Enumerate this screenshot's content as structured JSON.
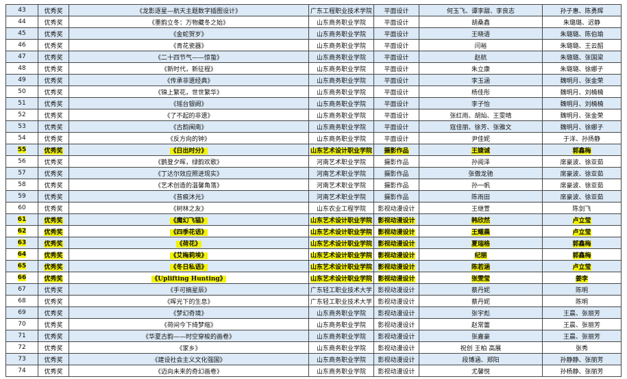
{
  "table": {
    "rows": [
      {
        "cells": [
          "43",
          "优秀奖",
          "《龙影逐星—航天主题数字插图设计》",
          "广东工程职业技术学院",
          "平面设计",
          "何玉飞、谭李甜、李良志",
          "孙子惠、陈勇辉"
        ]
      },
      {
        "cells": [
          "44",
          "优秀奖",
          "《墨韵立冬：万物藏冬之始》",
          "山东商务职业学院",
          "平面设计",
          "胡桑鑫",
          "朱璐璐、迟静"
        ]
      },
      {
        "cells": [
          "45",
          "优秀奖",
          "《金蛇贺岁》",
          "山东商务职业学院",
          "平面设计",
          "王晓语",
          "朱璐璐、陈伯瑜"
        ]
      },
      {
        "cells": [
          "46",
          "优秀奖",
          "《青花瓷器》",
          "山东商务职业学院",
          "平面设计",
          "闫裕",
          "朱璐璐、王云韶"
        ]
      },
      {
        "cells": [
          "47",
          "优秀奖",
          "《二十四节气——惊蛰》",
          "山东商务职业学院",
          "平面设计",
          "赵航",
          "朱璐璐、张国梁"
        ]
      },
      {
        "cells": [
          "48",
          "优秀奖",
          "《新时代，新征程》",
          "山东商务职业学院",
          "平面设计",
          "朱立康",
          "朱璐璐、徐娜子"
        ]
      },
      {
        "cells": [
          "49",
          "优秀奖",
          "《传承非遗经典》",
          "山东商务职业学院",
          "平面设计",
          "李玉涵",
          "魏明月、张金荣"
        ]
      },
      {
        "cells": [
          "50",
          "优秀奖",
          "《锦上繁花，世世繁华》",
          "山东商务职业学院",
          "平面设计",
          "杨佳彤",
          "魏明月、刘楠楠"
        ]
      },
      {
        "cells": [
          "51",
          "优秀奖",
          "《瑶台银阙》",
          "山东商务职业学院",
          "平面设计",
          "李子怡",
          "魏明月、刘楠楠"
        ]
      },
      {
        "cells": [
          "52",
          "优秀奖",
          "《了不起的非遗》",
          "山东商务职业学院",
          "平面设计",
          "张红雨、胡灿、王雯晴",
          "魏明月、张金荣"
        ]
      },
      {
        "cells": [
          "53",
          "优秀奖",
          "《古韵闽南》",
          "山东商务职业学院",
          "平面设计",
          "寇佳丽、徐芳、张雅文",
          "魏明月、徐娜子"
        ]
      },
      {
        "cells": [
          "54",
          "优秀奖",
          "《反方向的钟》",
          "山东商务职业学院",
          "平面设计",
          "尹佳妮",
          "于洋、孙扬静"
        ]
      },
      {
        "cells": [
          "55",
          "优秀奖",
          "《日出时分》",
          "山东艺术设计职业学院",
          "摄影作品",
          "王婕诚",
          "郭鑫梅"
        ],
        "highlight": true
      },
      {
        "cells": [
          "56",
          "优秀奖",
          "《鹊登夕晖，绿韵欢歌》",
          "河南艺术职业学院",
          "摄影作品",
          "孙阅泽",
          "席豪波、徐亚茹"
        ]
      },
      {
        "cells": [
          "57",
          "优秀奖",
          "《丁达尔效应照进现实》",
          "河南艺术职业学院",
          "摄影作品",
          "张傲龙驰",
          "席豪波、徐亚茹"
        ]
      },
      {
        "cells": [
          "58",
          "优秀奖",
          "《艺术创造的温馨角落》",
          "河南艺术职业学院",
          "摄影作品",
          "孙一帆",
          "席豪波、徐亚茹"
        ]
      },
      {
        "cells": [
          "59",
          "优秀奖",
          "《苔痕沐光》",
          "河南艺术职业学院",
          "摄影作品",
          "陈雨田",
          "席豪波、徐亚茹"
        ]
      },
      {
        "cells": [
          "60",
          "优秀奖",
          "《树林之友》",
          "山东农业工程学院",
          "影视动漫设计",
          "王继萱",
          "陈剑飞"
        ]
      },
      {
        "cells": [
          "61",
          "优秀奖",
          "《魔幻飞猫》",
          "山东艺术设计职业学院",
          "影视动漫设计",
          "韩欣然",
          "卢立莹"
        ],
        "highlight": true
      },
      {
        "cells": [
          "62",
          "优秀奖",
          "《四季花语》",
          "山东艺术设计职业学院",
          "影视动漫设计",
          "王耀晨",
          "卢立莹"
        ],
        "highlight": true
      },
      {
        "cells": [
          "63",
          "优秀奖",
          "《荷花》",
          "山东艺术设计职业学院",
          "影视动漫设计",
          "夏瑞格",
          "郭鑫梅"
        ],
        "highlight": true
      },
      {
        "cells": [
          "64",
          "优秀奖",
          "《艾梅莉埃》",
          "山东艺术设计职业学院",
          "影视动漫设计",
          "纪丽",
          "郭鑫梅"
        ],
        "highlight": true
      },
      {
        "cells": [
          "65",
          "优秀奖",
          "《冬日私语》",
          "山东艺术设计职业学院",
          "影视动漫设计",
          "陈若涵",
          "卢立莹"
        ],
        "highlight": true
      },
      {
        "cells": [
          "66",
          "优秀奖",
          "《Uplifting Hunting》",
          "山东艺术设计职业学院",
          "影视动漫设计",
          "张雯莹",
          "姜李"
        ],
        "highlight": true
      },
      {
        "cells": [
          "67",
          "优秀奖",
          "《手可摘星辰》",
          "广东轻工职业技术大学",
          "影视动漫设计",
          "蔡丹妮",
          "陈明"
        ]
      },
      {
        "cells": [
          "68",
          "优秀奖",
          "《晖光下的生息》",
          "广东轻工职业技术大学",
          "影视动漫设计",
          "蔡丹妮",
          "陈明"
        ]
      },
      {
        "cells": [
          "69",
          "优秀奖",
          "《梦幻奇境》",
          "山东商务职业学院",
          "影视动漫设计",
          "张宇彪",
          "王晨、张丽芳"
        ]
      },
      {
        "cells": [
          "70",
          "优秀奖",
          "《荷间今下绮梦缩》",
          "山东商务职业学院",
          "影视动漫设计",
          "赵常蕾",
          "王晨、张丽芳"
        ]
      },
      {
        "cells": [
          "71",
          "优秀奖",
          "《华夏古韵——时空穿梭的画卷》",
          "山东商务职业学院",
          "影视动漫设计",
          "张嘉豪",
          "王晨、张丽芳"
        ]
      },
      {
        "cells": [
          "72",
          "优秀奖",
          "《家乡》",
          "山东商务职业学院",
          "影视动漫设计",
          "祝创 王柏 高展",
          "张秀"
        ]
      },
      {
        "cells": [
          "73",
          "优秀奖",
          "《建设社会主义文化强国》",
          "山东商务职业学院",
          "影视动漫设计",
          "段博涵、郑阳",
          "孙静静、张丽芳"
        ]
      },
      {
        "cells": [
          "74",
          "优秀奖",
          "《迈向未来的奇幻画卷》",
          "山东商务职业学院",
          "影视动漫设计",
          "尤馨悦",
          "孙杨静、张丽芳"
        ]
      }
    ]
  }
}
